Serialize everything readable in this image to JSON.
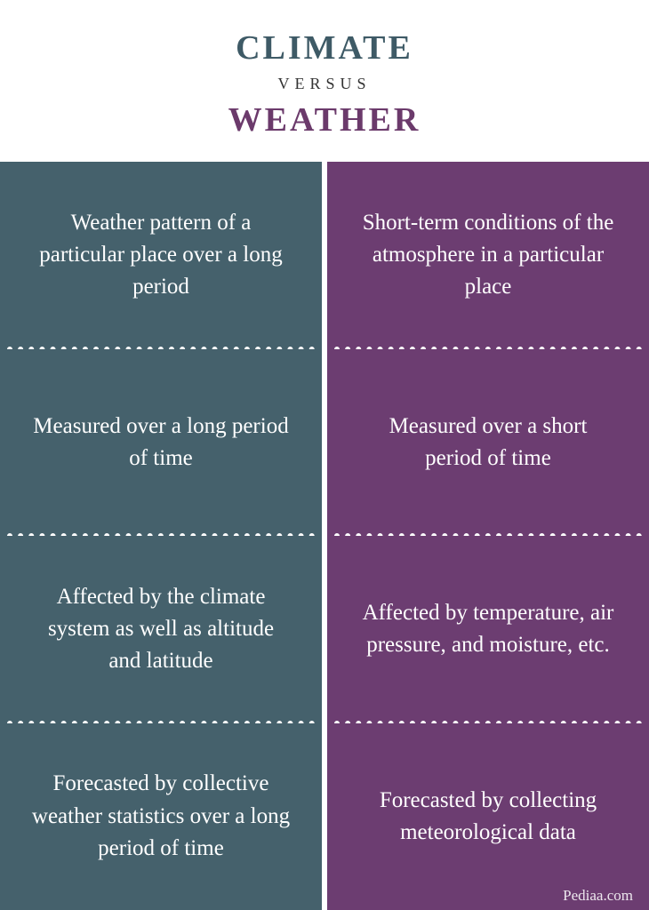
{
  "header": {
    "title_top": "CLIMATE",
    "versus": "VERSUS",
    "title_bottom": "WEATHER",
    "title_top_color": "#3e5a66",
    "title_bottom_color": "#6b3a6b"
  },
  "columns": {
    "left": {
      "bg_color": "#45616c",
      "cells": [
        "Weather pattern of a particular place over a long period",
        "Measured over a long period of time",
        "Affected by the climate system as well as altitude and latitude",
        "Forecasted by collective weather statistics over a long period of time"
      ]
    },
    "right": {
      "bg_color": "#6c3d71",
      "cells": [
        "Short-term conditions of the atmosphere in a particular place",
        "Measured over a short period of time",
        "Affected by temperature, air pressure, and moisture, etc.",
        "Forecasted by collecting meteorological data"
      ]
    }
  },
  "attribution": "Pediaa.com"
}
